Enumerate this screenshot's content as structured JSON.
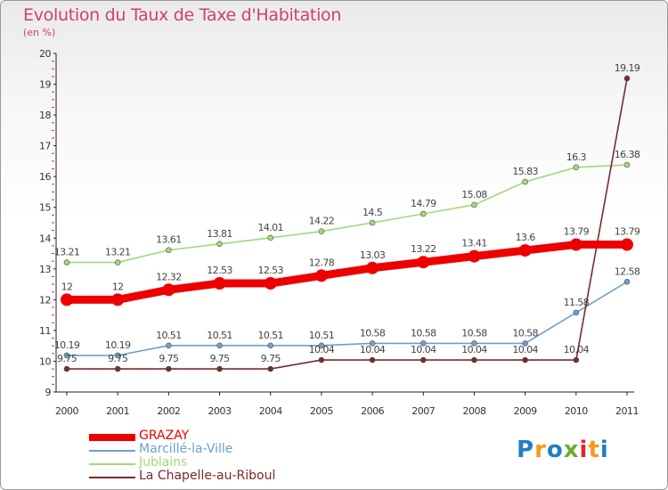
{
  "title": "Evolution du Taux de Taxe d'Habitation",
  "subtitle": "(en %)",
  "logo": {
    "text": "Proxiti",
    "colors": [
      "#1f7fc1",
      "#f39a1e",
      "#1f7fc1",
      "#6cae2c",
      "#e8261f",
      "#f39a1e",
      "#1f7fc1"
    ]
  },
  "chart_data": {
    "type": "line",
    "x": [
      "2000",
      "2001",
      "2002",
      "2003",
      "2004",
      "2005",
      "2006",
      "2007",
      "2008",
      "2009",
      "2010",
      "2011"
    ],
    "ylim": [
      9,
      20
    ],
    "yticks": [
      "9",
      "10",
      "11",
      "12",
      "13",
      "14",
      "15",
      "16",
      "17",
      "18",
      "19",
      "20"
    ],
    "grid": false,
    "legend_position": "bottom-left",
    "series": [
      {
        "name": "Jublains",
        "color": "#a3d87a",
        "width": "thin",
        "values": [
          13.21,
          13.21,
          13.61,
          13.81,
          14.01,
          14.22,
          14.5,
          14.79,
          15.08,
          15.83,
          16.3,
          16.38
        ],
        "labels": [
          "13.21",
          "13.21",
          "13.61",
          "13.81",
          "14.01",
          "14.22",
          "14.5",
          "14.79",
          "15.08",
          "15.83",
          "16.3",
          "16.38"
        ]
      },
      {
        "name": "Marcillé-la-Ville",
        "color": "#6ca0cc",
        "width": "thin",
        "values": [
          10.19,
          10.19,
          10.51,
          10.51,
          10.51,
          10.51,
          10.58,
          10.58,
          10.58,
          10.58,
          11.58,
          12.58
        ],
        "labels": [
          "10.19",
          "10.19",
          "10.51",
          "10.51",
          "10.51",
          "10.51",
          "10.58",
          "10.58",
          "10.58",
          "10.58",
          "11.58",
          "12.58"
        ]
      },
      {
        "name": "La Chapelle-au-Riboul",
        "color": "#7a2a2a",
        "width": "thin",
        "values": [
          9.75,
          9.75,
          9.75,
          9.75,
          9.75,
          10.04,
          10.04,
          10.04,
          10.04,
          10.04,
          10.04,
          19.19
        ],
        "labels": [
          "9.75",
          "9.75",
          "9.75",
          "9.75",
          "9.75",
          "10.04",
          "10.04",
          "10.04",
          "10.04",
          "10.04",
          "10.04",
          "19.19"
        ]
      },
      {
        "name": "GRAZAY",
        "color": "#ee0000",
        "width": "thick",
        "values": [
          12,
          12,
          12.32,
          12.53,
          12.53,
          12.78,
          13.03,
          13.22,
          13.41,
          13.6,
          13.79,
          13.79
        ],
        "labels": [
          "12",
          "12",
          "12.32",
          "12.53",
          "12.53",
          "12.78",
          "13.03",
          "13.22",
          "13.41",
          "13.6",
          "13.79",
          "13.79"
        ]
      }
    ]
  },
  "legend": [
    {
      "label": "GRAZAY",
      "color": "#ee0000",
      "thick": true
    },
    {
      "label": "Marcillé-la-Ville",
      "color": "#6ca0cc",
      "thick": false
    },
    {
      "label": "Jublains",
      "color": "#a3d87a",
      "thick": false
    },
    {
      "label": "La Chapelle-au-Riboul",
      "color": "#7a2a2a",
      "thick": false
    }
  ]
}
